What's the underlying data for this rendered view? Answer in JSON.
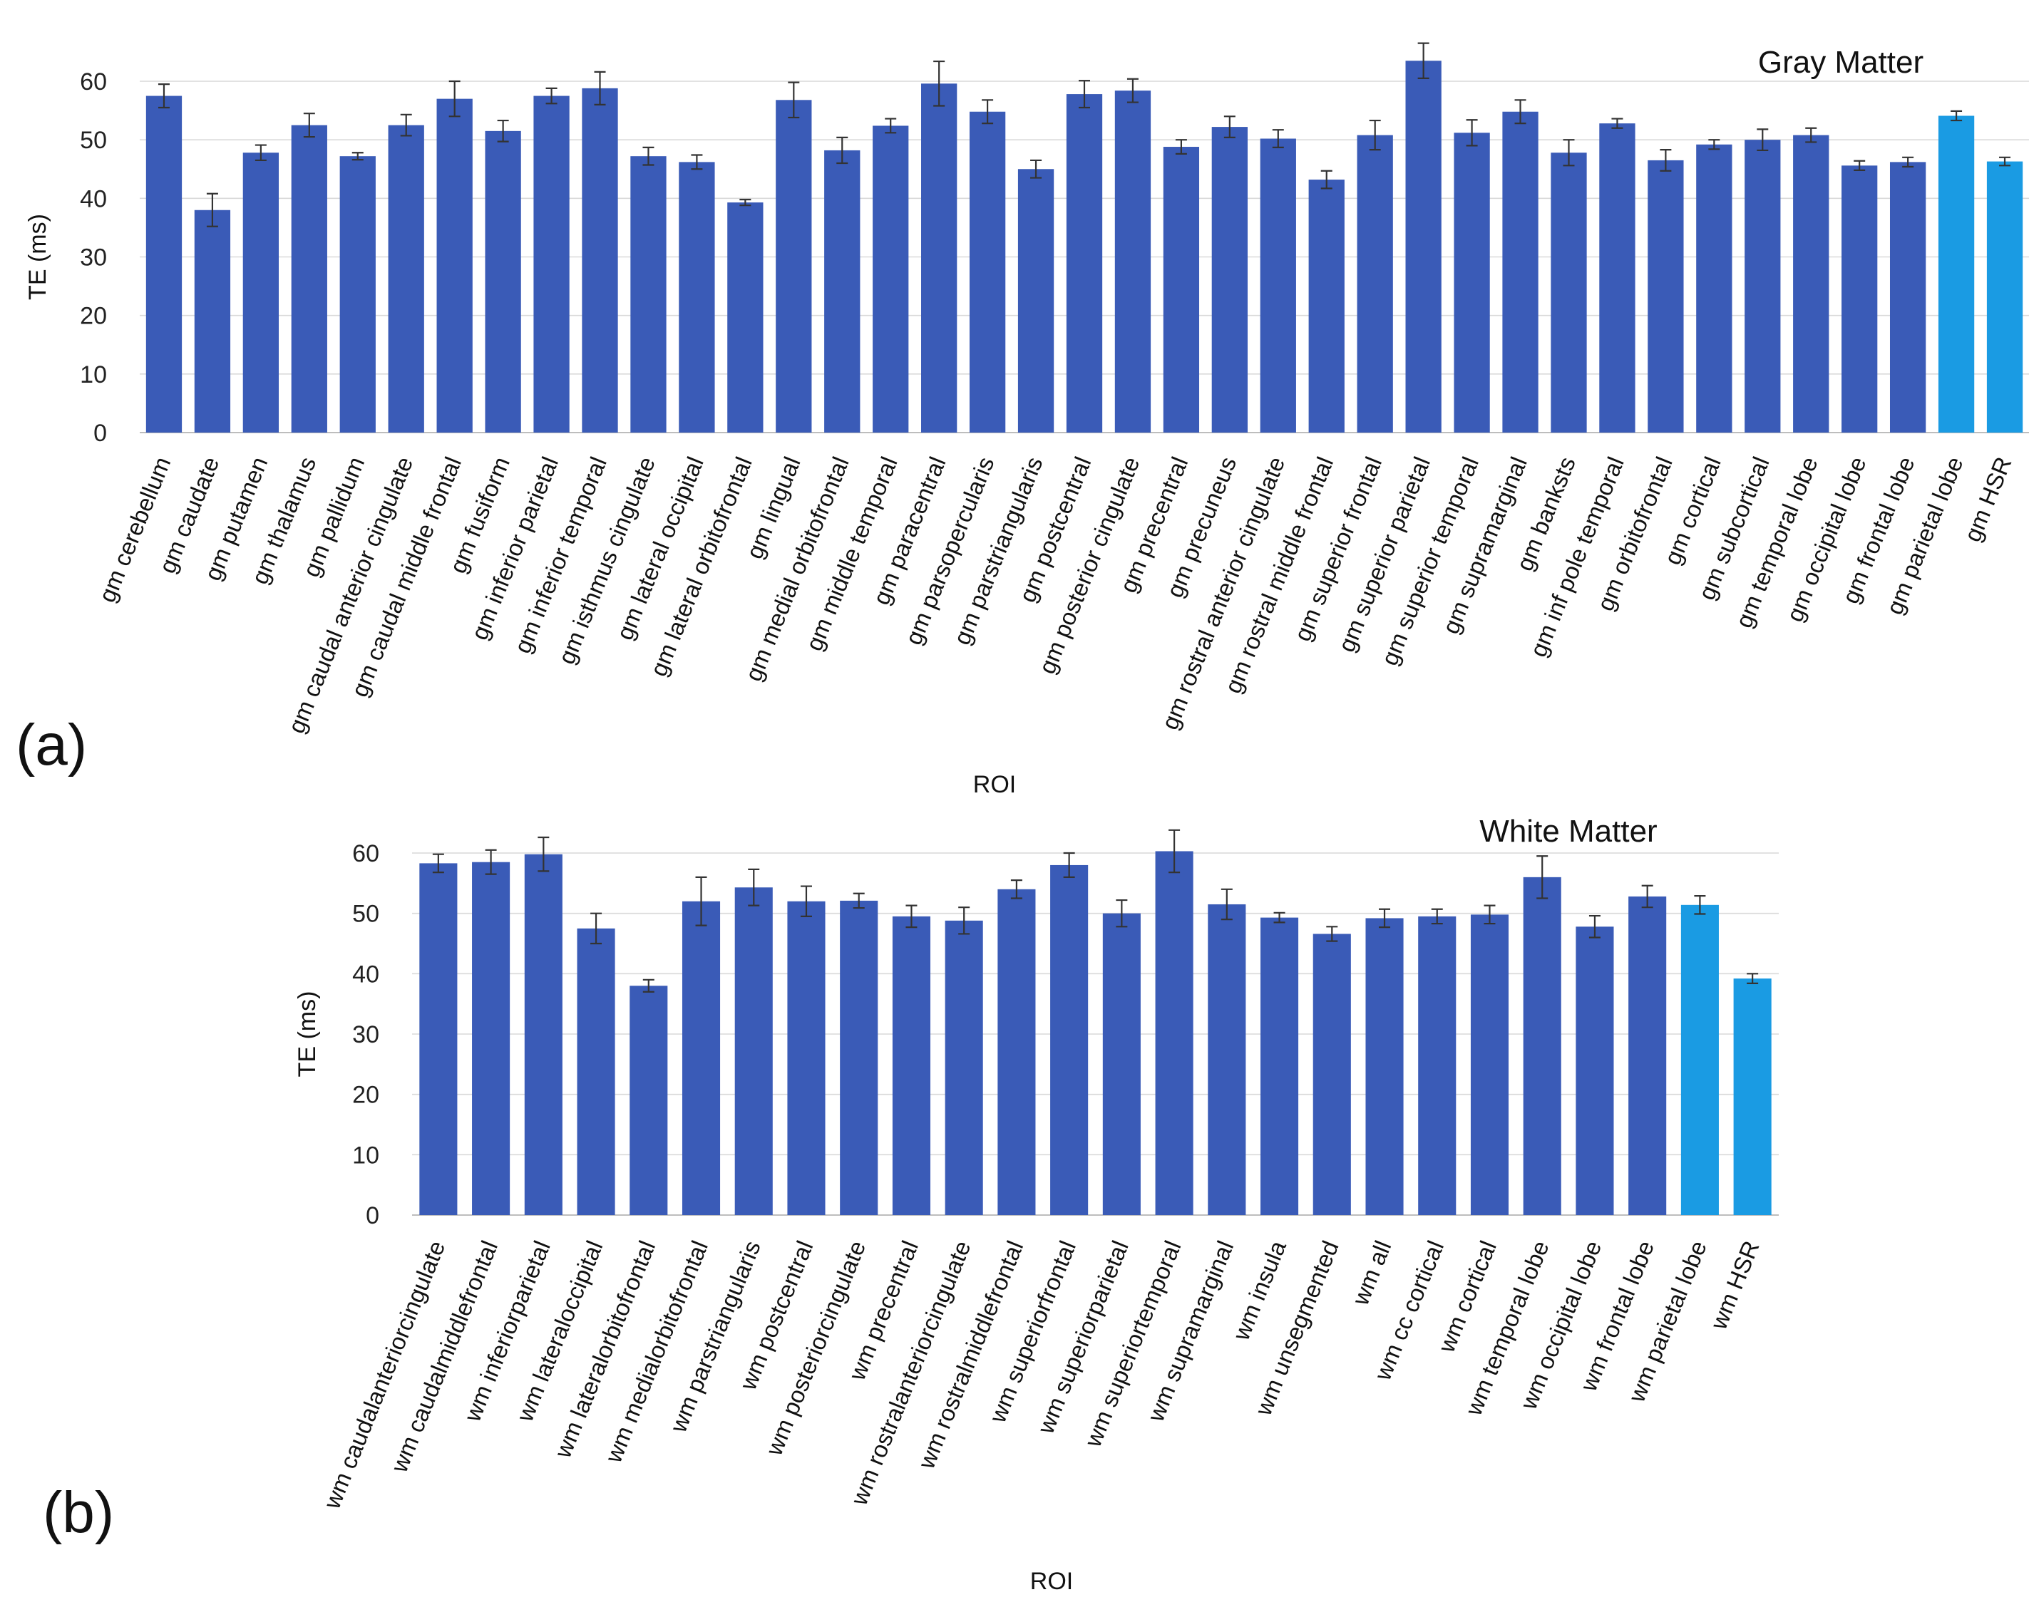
{
  "chart_data": [
    {
      "type": "bar",
      "panel_label": "(a)",
      "title": "Gray Matter",
      "xlabel": "ROI",
      "ylabel": "TE (ms)",
      "ylim": [
        0,
        60
      ],
      "yticks": [
        0,
        10,
        20,
        30,
        40,
        50,
        60
      ],
      "gridlines": true,
      "colors": {
        "default": "#3A5BB7",
        "highlight": "#1A9BE3"
      },
      "categories": [
        "gm cerebellum",
        "gm caudate",
        "gm putamen",
        "gm thalamus",
        "gm pallidum",
        "gm caudal anterior cingulate",
        "gm caudal middle frontal",
        "gm fusiform",
        "gm inferior parietal",
        "gm inferior temporal",
        "gm isthmus cingulate",
        "gm lateral occipital",
        "gm lateral orbitofrontal",
        "gm lingual",
        "gm medial orbitofrontal",
        "gm middle temporal",
        "gm paracentral",
        "gm parsopercularis",
        "gm parstriangularis",
        "gm postcentral",
        "gm posterior cingulate",
        "gm precentral",
        "gm precuneus",
        "gm rostral anterior cingulate",
        "gm rostral middle frontal",
        "gm superior frontal",
        "gm superior parietal",
        "gm superior temporal",
        "gm supramarginal",
        "gm banksts",
        "gm inf pole temporal",
        "gm orbitofrontal",
        "gm cortical",
        "gm subcortical",
        "gm temporal lobe",
        "gm occipital lobe",
        "gm frontal lobe",
        "gm parietal lobe",
        "gm HSR"
      ],
      "values": [
        57.5,
        38,
        47.8,
        52.5,
        47.2,
        52.5,
        57,
        51.5,
        57.5,
        58.8,
        47.2,
        46.2,
        39.3,
        56.8,
        48.2,
        52.4,
        59.6,
        54.8,
        45,
        57.8,
        58.4,
        48.8,
        52.2,
        50.2,
        43.2,
        50.8,
        63.5,
        51.2,
        54.8,
        47.8,
        52.8,
        46.5,
        49.2,
        50,
        50.8,
        45.6,
        46.2,
        54.1,
        46.3
      ],
      "errors": [
        2,
        2.8,
        1.3,
        2,
        0.6,
        1.8,
        3,
        1.8,
        1.3,
        2.8,
        1.5,
        1.2,
        0.5,
        3,
        2.2,
        1.2,
        3.8,
        2,
        1.5,
        2.3,
        2,
        1.2,
        1.8,
        1.5,
        1.5,
        2.5,
        3,
        2.2,
        2,
        2.2,
        0.8,
        1.8,
        0.8,
        1.8,
        1.2,
        0.8,
        0.8,
        0.8,
        0.7
      ],
      "highlight": [
        false,
        false,
        false,
        false,
        false,
        false,
        false,
        false,
        false,
        false,
        false,
        false,
        false,
        false,
        false,
        false,
        false,
        false,
        false,
        false,
        false,
        false,
        false,
        false,
        false,
        false,
        false,
        false,
        false,
        false,
        false,
        false,
        false,
        false,
        false,
        false,
        false,
        true,
        true
      ]
    },
    {
      "type": "bar",
      "panel_label": "(b)",
      "title": "White Matter",
      "xlabel": "ROI",
      "ylabel": "TE (ms)",
      "ylim": [
        0,
        60
      ],
      "yticks": [
        0,
        10,
        20,
        30,
        40,
        50,
        60
      ],
      "gridlines": true,
      "colors": {
        "default": "#3A5BB7",
        "highlight": "#1A9BE3"
      },
      "categories": [
        "wm caudalanteriorcingulate",
        "wm caudalmiddlefrontal",
        "wm inferiorparietal",
        "wm lateraloccipital",
        "wm lateralorbitofrontal",
        "wm medialorbitofrontal",
        "wm parstriangularis",
        "wm postcentral",
        "wm posteriorcingulate",
        "wm precentral",
        "wm rostralanteriorcingulate",
        "wm rostralmiddlefrontal",
        "wm superiorfrontal",
        "wm superiorparietal",
        "wm superiortemporal",
        "wm supramarginal",
        "wm insula",
        "wm unsegmented",
        "wm all",
        "wm cc cortical",
        "wm cortical",
        "wm temporal lobe",
        "wm occipital lobe",
        "wm frontal lobe",
        "wm parietal lobe",
        "wm HSR"
      ],
      "values": [
        58.3,
        58.5,
        59.8,
        47.5,
        38,
        52,
        54.3,
        52,
        52.1,
        49.5,
        48.8,
        54,
        58,
        50,
        60.3,
        51.5,
        49.3,
        46.6,
        49.2,
        49.5,
        49.8,
        56,
        47.8,
        52.8,
        51.4,
        39.2
      ],
      "errors": [
        1.5,
        2,
        2.8,
        2.5,
        1,
        4,
        3,
        2.5,
        1.2,
        1.8,
        2.2,
        1.5,
        2,
        2.2,
        3.5,
        2.5,
        0.8,
        1.2,
        1.5,
        1.2,
        1.5,
        3.5,
        1.8,
        1.8,
        1.5,
        0.8
      ],
      "highlight": [
        false,
        false,
        false,
        false,
        false,
        false,
        false,
        false,
        false,
        false,
        false,
        false,
        false,
        false,
        false,
        false,
        false,
        false,
        false,
        false,
        false,
        false,
        false,
        false,
        true,
        true
      ]
    }
  ]
}
